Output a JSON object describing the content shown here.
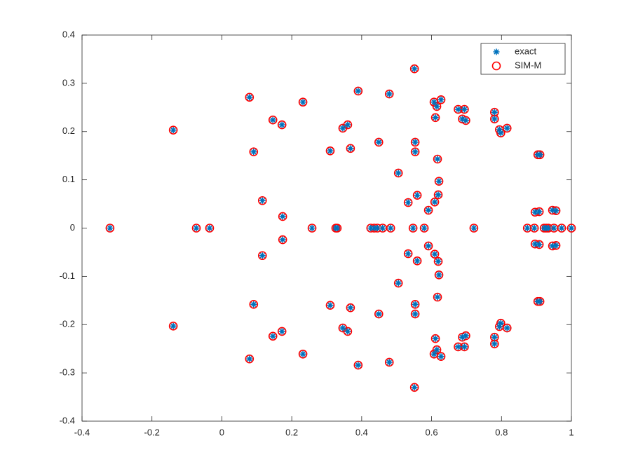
{
  "chart_data": {
    "type": "scatter",
    "xlim": [
      -0.4,
      1
    ],
    "ylim": [
      -0.4,
      0.4
    ],
    "xticks": [
      -0.4,
      -0.2,
      0,
      0.2,
      0.4,
      0.6,
      0.8,
      1
    ],
    "yticks": [
      -0.4,
      -0.3,
      -0.2,
      -0.1,
      0,
      0.1,
      0.2,
      0.3,
      0.4
    ],
    "legend": "northeast",
    "series": [
      {
        "name": "exact",
        "color": "#0072bd",
        "marker": "asterisk",
        "x": [
          -0.32,
          -0.073,
          -0.035,
          0.258,
          0.326,
          0.33,
          0.426,
          0.436,
          0.445,
          0.46,
          0.483,
          0.547,
          0.579,
          0.721,
          0.874,
          0.894,
          0.922,
          0.928,
          0.934,
          0.95,
          0.972,
          1,
          -0.139,
          0.079,
          0.091,
          0.116,
          0.146,
          0.172,
          0.174,
          0.232,
          0.31,
          0.346,
          0.36,
          0.368,
          0.39,
          0.449,
          0.479,
          0.505,
          0.533,
          0.551,
          0.553,
          0.553,
          0.559,
          0.591,
          0.607,
          0.615,
          0.627,
          0.611,
          0.609,
          0.617,
          0.621,
          0.619,
          0.676,
          0.694,
          0.688,
          0.698,
          0.78,
          0.78,
          0.794,
          0.798,
          0.816,
          0.904,
          0.91,
          0.896,
          0.908,
          0.946,
          0.956,
          -0.139,
          0.079,
          0.091,
          0.116,
          0.146,
          0.172,
          0.174,
          0.232,
          0.31,
          0.346,
          0.36,
          0.368,
          0.39,
          0.449,
          0.479,
          0.505,
          0.533,
          0.551,
          0.553,
          0.553,
          0.559,
          0.591,
          0.607,
          0.615,
          0.627,
          0.611,
          0.609,
          0.617,
          0.621,
          0.619,
          0.676,
          0.694,
          0.688,
          0.698,
          0.78,
          0.78,
          0.794,
          0.798,
          0.816,
          0.904,
          0.91,
          0.896,
          0.908,
          0.946,
          0.956
        ],
        "values": [
          0,
          0,
          0,
          0,
          0,
          0,
          0,
          0,
          0,
          0,
          0,
          0,
          0,
          0,
          0,
          0,
          0,
          0,
          0,
          0,
          0,
          0,
          0.203,
          0.271,
          0.158,
          0.057,
          0.224,
          0.214,
          0.024,
          0.261,
          0.16,
          0.207,
          0.214,
          0.165,
          0.284,
          0.178,
          0.278,
          0.114,
          0.053,
          0.33,
          0.178,
          0.158,
          0.068,
          0.037,
          0.261,
          0.252,
          0.266,
          0.229,
          0.054,
          0.143,
          0.097,
          0.069,
          0.246,
          0.246,
          0.226,
          0.223,
          0.24,
          0.226,
          0.204,
          0.197,
          0.207,
          0.152,
          0.152,
          0.033,
          0.034,
          0.037,
          0.036,
          -0.203,
          -0.271,
          -0.158,
          -0.057,
          -0.224,
          -0.214,
          -0.024,
          -0.261,
          -0.16,
          -0.207,
          -0.214,
          -0.165,
          -0.284,
          -0.178,
          -0.278,
          -0.114,
          -0.053,
          -0.33,
          -0.178,
          -0.158,
          -0.068,
          -0.037,
          -0.261,
          -0.252,
          -0.266,
          -0.229,
          -0.054,
          -0.143,
          -0.097,
          -0.069,
          -0.246,
          -0.246,
          -0.226,
          -0.223,
          -0.24,
          -0.226,
          -0.204,
          -0.197,
          -0.207,
          -0.152,
          -0.152,
          -0.033,
          -0.034,
          -0.037,
          -0.036
        ]
      },
      {
        "name": "SIM-M",
        "color": "#ff0000",
        "marker": "circle",
        "x": [
          -0.32,
          -0.073,
          -0.035,
          0.258,
          0.326,
          0.33,
          0.426,
          0.436,
          0.445,
          0.46,
          0.483,
          0.547,
          0.579,
          0.721,
          0.874,
          0.894,
          0.922,
          0.928,
          0.934,
          0.95,
          0.972,
          1,
          -0.139,
          0.079,
          0.091,
          0.116,
          0.146,
          0.172,
          0.174,
          0.232,
          0.31,
          0.346,
          0.36,
          0.368,
          0.39,
          0.449,
          0.479,
          0.505,
          0.533,
          0.551,
          0.553,
          0.553,
          0.559,
          0.591,
          0.607,
          0.615,
          0.627,
          0.611,
          0.609,
          0.617,
          0.621,
          0.619,
          0.676,
          0.694,
          0.688,
          0.698,
          0.78,
          0.78,
          0.794,
          0.798,
          0.816,
          0.904,
          0.91,
          0.896,
          0.908,
          0.946,
          0.956,
          -0.139,
          0.079,
          0.091,
          0.116,
          0.146,
          0.172,
          0.174,
          0.232,
          0.31,
          0.346,
          0.36,
          0.368,
          0.39,
          0.449,
          0.479,
          0.505,
          0.533,
          0.551,
          0.553,
          0.553,
          0.559,
          0.591,
          0.607,
          0.615,
          0.627,
          0.611,
          0.609,
          0.617,
          0.621,
          0.619,
          0.676,
          0.694,
          0.688,
          0.698,
          0.78,
          0.78,
          0.794,
          0.798,
          0.816,
          0.904,
          0.91,
          0.896,
          0.908,
          0.946,
          0.956
        ],
        "values": [
          0,
          0,
          0,
          0,
          0,
          0,
          0,
          0,
          0,
          0,
          0,
          0,
          0,
          0,
          0,
          0,
          0,
          0,
          0,
          0,
          0,
          0,
          0.203,
          0.271,
          0.158,
          0.057,
          0.224,
          0.214,
          0.024,
          0.261,
          0.16,
          0.207,
          0.214,
          0.165,
          0.284,
          0.178,
          0.278,
          0.114,
          0.053,
          0.33,
          0.178,
          0.158,
          0.068,
          0.037,
          0.261,
          0.252,
          0.266,
          0.229,
          0.054,
          0.143,
          0.097,
          0.069,
          0.246,
          0.246,
          0.226,
          0.223,
          0.24,
          0.226,
          0.204,
          0.197,
          0.207,
          0.152,
          0.152,
          0.033,
          0.034,
          0.037,
          0.036,
          -0.203,
          -0.271,
          -0.158,
          -0.057,
          -0.224,
          -0.214,
          -0.024,
          -0.261,
          -0.16,
          -0.207,
          -0.214,
          -0.165,
          -0.284,
          -0.178,
          -0.278,
          -0.114,
          -0.053,
          -0.33,
          -0.178,
          -0.158,
          -0.068,
          -0.037,
          -0.261,
          -0.252,
          -0.266,
          -0.229,
          -0.054,
          -0.143,
          -0.097,
          -0.069,
          -0.246,
          -0.246,
          -0.226,
          -0.223,
          -0.24,
          -0.226,
          -0.204,
          -0.197,
          -0.207,
          -0.152,
          -0.152,
          -0.033,
          -0.034,
          -0.037,
          -0.036
        ]
      }
    ]
  }
}
